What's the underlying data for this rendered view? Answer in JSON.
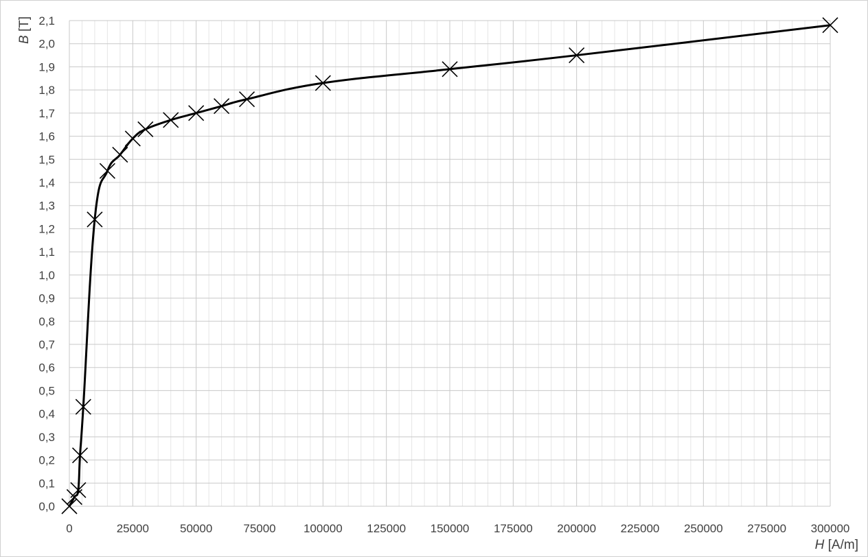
{
  "chart_data": {
    "type": "line",
    "title": "",
    "xlabel": {
      "var": "H",
      "unit": " [A/m]"
    },
    "ylabel": {
      "var": "B",
      "unit": " [T]"
    },
    "xlim": [
      0,
      300000
    ],
    "ylim": [
      0,
      2.1
    ],
    "x_major_step": 25000,
    "x_minor_step": 5000,
    "y_major_step": 0.1,
    "grid": true,
    "legend": "none",
    "x_tick_labels": [
      "0",
      "25000",
      "50000",
      "75000",
      "100000",
      "125000",
      "150000",
      "175000",
      "200000",
      "225000",
      "250000",
      "275000",
      "300000"
    ],
    "y_tick_labels": [
      "0,0",
      "0,1",
      "0,2",
      "0,3",
      "0,4",
      "0,5",
      "0,6",
      "0,7",
      "0,8",
      "0,9",
      "1,0",
      "1,1",
      "1,2",
      "1,3",
      "1,4",
      "1,5",
      "1,6",
      "1,7",
      "1,8",
      "1,9",
      "2,0",
      "2,1"
    ],
    "series": [
      {
        "marker": "x",
        "color": "#000000",
        "x": [
          0,
          2000,
          3500,
          4200,
          5500,
          10000,
          15000,
          20000,
          25000,
          30000,
          40000,
          50000,
          60000,
          70000,
          100000,
          150000,
          200000,
          300000
        ],
        "y": [
          0.0,
          0.04,
          0.07,
          0.22,
          0.43,
          1.24,
          1.45,
          1.52,
          1.59,
          1.63,
          1.67,
          1.7,
          1.73,
          1.76,
          1.83,
          1.89,
          1.95,
          2.08
        ]
      }
    ]
  }
}
